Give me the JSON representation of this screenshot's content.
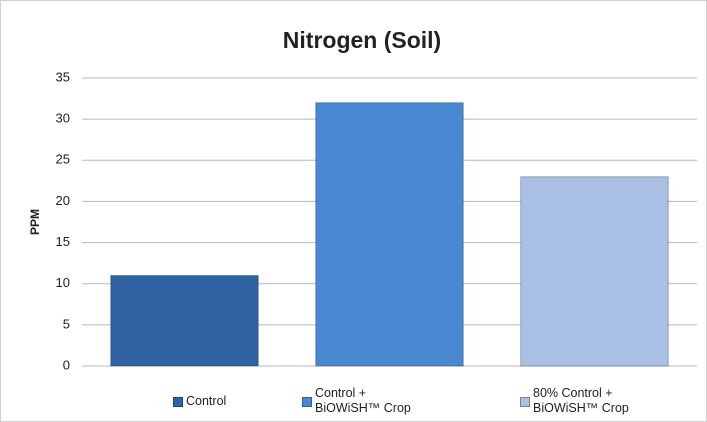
{
  "chart_data": {
    "type": "bar",
    "title": "Nitrogen (Soil)",
    "y_label": "PPM",
    "series": [
      {
        "name": "Control",
        "color": "#2f62a3",
        "values": [
          11
        ]
      },
      {
        "name": "Control + BiOWiSH™ Crop",
        "color": "#4a88d2",
        "values": [
          32
        ]
      },
      {
        "name": "80% Control + BiOWiSH™ Crop",
        "color": "#a9bfe3",
        "values": [
          23
        ]
      }
    ],
    "ylim": [
      0,
      35
    ],
    "yticks": [
      0,
      5,
      10,
      15,
      20,
      25,
      30,
      35
    ],
    "grid": true,
    "legend": "bottom"
  }
}
